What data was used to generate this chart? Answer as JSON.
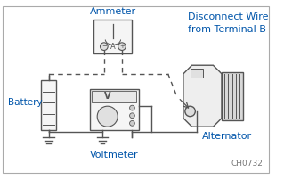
{
  "bg_color": "#ffffff",
  "border_color": "#aaaaaa",
  "text_ammeter": "Ammeter",
  "text_battery": "Battery",
  "text_voltmeter": "Voltmeter",
  "text_alternator": "Alternator",
  "text_disconnect": "Disconnect Wire\nfrom Terminal B",
  "text_code": "CH0732",
  "solid_color": "#555555",
  "dashed_color": "#555555",
  "label_color_blue": "#0055aa",
  "wire_color": "#555555"
}
